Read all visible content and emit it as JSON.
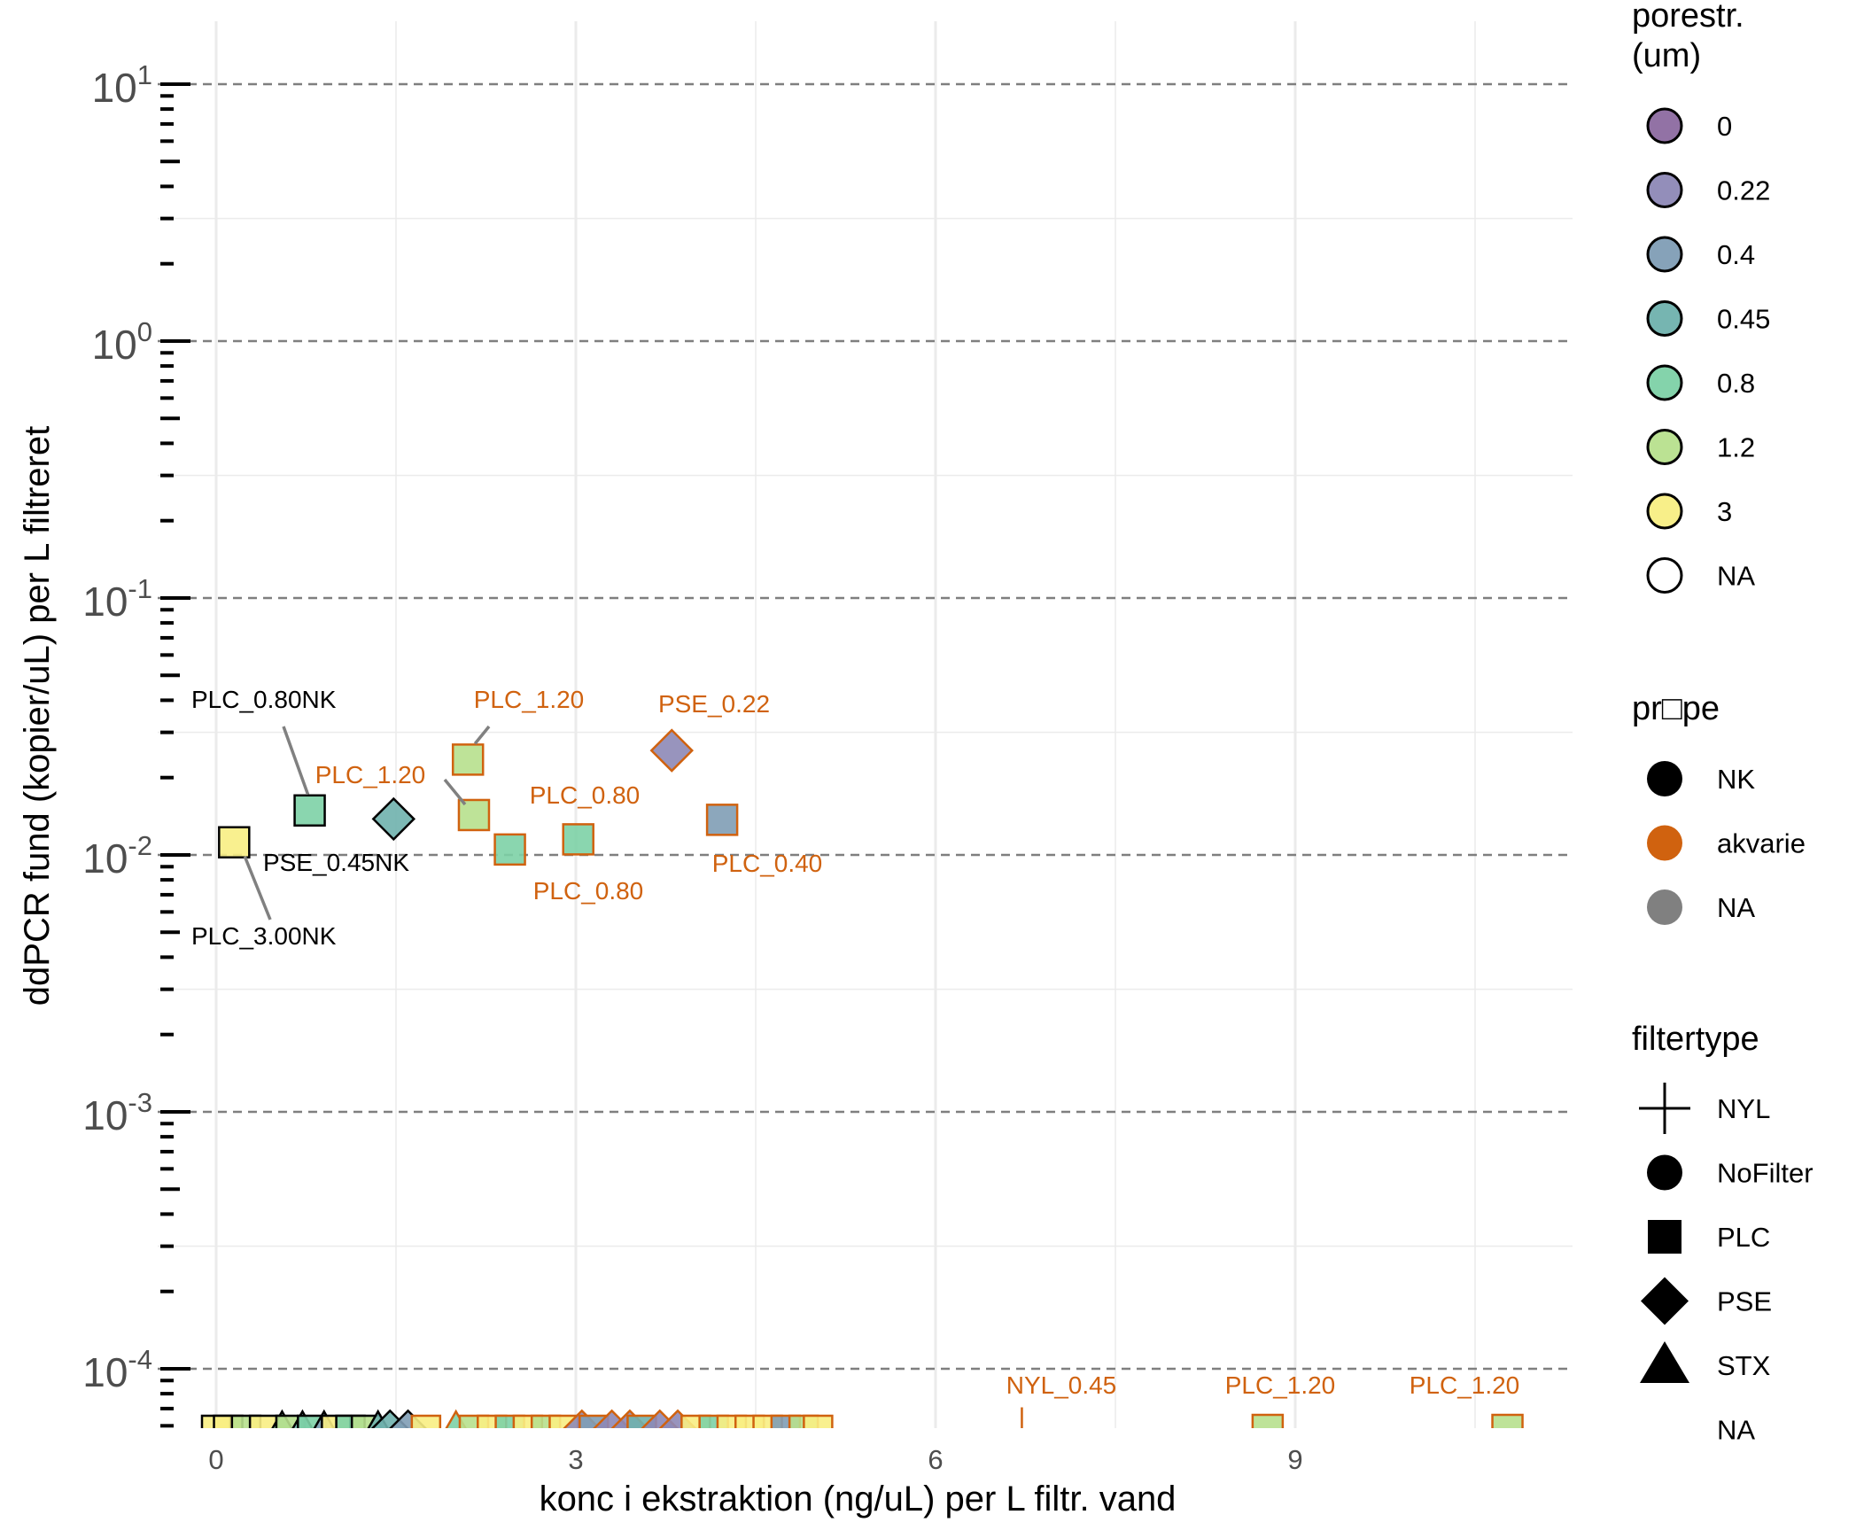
{
  "chart_data": {
    "type": "scatter",
    "title": "",
    "xlabel": "konc i ekstraktion (ng/uL) per L filtr. vand",
    "ylabel": "ddPCR fund (kopier/uL) per L filtreret",
    "x_scale": "linear",
    "y_scale": "log10",
    "xlim": [
      -0.55,
      11.3
    ],
    "ylim": [
      5e-05,
      20
    ],
    "x_ticks": [
      0,
      3,
      6,
      9
    ],
    "x_tick_labels": [
      "0",
      "3",
      "6",
      "9"
    ],
    "y_ticks": [
      {
        "base": "10",
        "exp": "-4",
        "value": 0.0001
      },
      {
        "base": "10",
        "exp": "-3",
        "value": 0.001
      },
      {
        "base": "10",
        "exp": "-2",
        "value": 0.01
      },
      {
        "base": "10",
        "exp": "-1",
        "value": 0.1
      },
      {
        "base": "10",
        "exp": "0",
        "value": 1
      },
      {
        "base": "10",
        "exp": "1",
        "value": 10
      }
    ],
    "grid": true,
    "dashed_reference_lines": [
      0.0001,
      0.001,
      0.01,
      0.1,
      1,
      10
    ],
    "legend_position": "right",
    "colors": {
      "porestr_0": "#8c6aa0",
      "porestr_0.22": "#8d88b6",
      "porestr_0.4": "#809db5",
      "porestr_0.45": "#6fb1ad",
      "porestr_0.8": "#7dd1a6",
      "porestr_1.2": "#b7e08d",
      "porestr_3": "#f8ee83",
      "probe_NK": "#000000",
      "probe_akvarie": "#d0620f",
      "probe_NA": "#808080",
      "grid": "#ebebeb",
      "dashed_line": "#7f7f7f"
    },
    "points": [
      {
        "x": 0.15,
        "y": 0.0112,
        "shape": "PLC",
        "porestr": "3",
        "probe": "NK",
        "label": "PLC_3.00NK"
      },
      {
        "x": 0.78,
        "y": 0.0149,
        "shape": "PLC",
        "porestr": "0.8",
        "probe": "NK",
        "label": "PLC_0.80NK"
      },
      {
        "x": 1.48,
        "y": 0.0138,
        "shape": "PSE",
        "porestr": "0.45",
        "probe": "NK",
        "label": "PSE_0.45NK"
      },
      {
        "x": 2.1,
        "y": 0.0235,
        "shape": "PLC",
        "porestr": "1.2",
        "probe": "akvarie",
        "label": "PLC_1.20"
      },
      {
        "x": 2.15,
        "y": 0.0143,
        "shape": "PLC",
        "porestr": "1.2",
        "probe": "akvarie",
        "label": "PLC_1.20"
      },
      {
        "x": 2.45,
        "y": 0.0105,
        "shape": "PLC",
        "porestr": "0.8",
        "probe": "akvarie",
        "label": "PLC_0.80"
      },
      {
        "x": 3.02,
        "y": 0.0115,
        "shape": "PLC",
        "porestr": "0.8",
        "probe": "akvarie",
        "label": "PLC_0.80"
      },
      {
        "x": 3.8,
        "y": 0.0255,
        "shape": "PSE",
        "porestr": "0.22",
        "probe": "akvarie",
        "label": "PSE_0.22"
      },
      {
        "x": 4.22,
        "y": 0.0137,
        "shape": "PLC",
        "porestr": "0.4",
        "probe": "akvarie",
        "label": "PLC_0.40"
      },
      {
        "x": 6.72,
        "y": 5.7e-05,
        "shape": "NYL",
        "porestr": "0.45",
        "probe": "akvarie",
        "label": "NYL_0.45"
      },
      {
        "x": 8.77,
        "y": 5.7e-05,
        "shape": "PLC",
        "porestr": "1.2",
        "probe": "akvarie",
        "label": "PLC_1.20"
      },
      {
        "x": 10.77,
        "y": 5.7e-05,
        "shape": "PLC",
        "porestr": "1.2",
        "probe": "akvarie",
        "label": "PLC_1.20"
      }
    ],
    "floor_points": [
      {
        "x": 0.0,
        "shape": "PLC",
        "porestr": "3",
        "probe": "NK"
      },
      {
        "x": 0.1,
        "shape": "PLC",
        "porestr": "3",
        "probe": "NK"
      },
      {
        "x": 0.25,
        "shape": "PLC",
        "porestr": "1.2",
        "probe": "NK"
      },
      {
        "x": 0.4,
        "shape": "PLC",
        "porestr": "3",
        "probe": "NK"
      },
      {
        "x": 0.55,
        "shape": "STX",
        "porestr": "0.8",
        "probe": "NK"
      },
      {
        "x": 0.62,
        "shape": "PLC",
        "porestr": "1.2",
        "probe": "NK"
      },
      {
        "x": 0.72,
        "shape": "STX",
        "porestr": "0.45",
        "probe": "NK"
      },
      {
        "x": 0.8,
        "shape": "PLC",
        "porestr": "0.8",
        "probe": "NK"
      },
      {
        "x": 0.9,
        "shape": "STX",
        "porestr": "0.4",
        "probe": "NK"
      },
      {
        "x": 1.0,
        "shape": "PLC",
        "porestr": "3",
        "probe": "NK"
      },
      {
        "x": 1.12,
        "shape": "PLC",
        "porestr": "0.8",
        "probe": "NK"
      },
      {
        "x": 1.25,
        "shape": "PLC",
        "porestr": "1.2",
        "probe": "NK"
      },
      {
        "x": 1.35,
        "shape": "STX",
        "porestr": "0.45",
        "probe": "NK"
      },
      {
        "x": 1.45,
        "shape": "PSE",
        "porestr": "0.45",
        "probe": "NK"
      },
      {
        "x": 1.6,
        "shape": "PSE",
        "porestr": "0.4",
        "probe": "NK"
      },
      {
        "x": 1.75,
        "shape": "PLC",
        "porestr": "3",
        "probe": "akvarie"
      },
      {
        "x": 2.0,
        "shape": "STX",
        "porestr": "0.8",
        "probe": "akvarie"
      },
      {
        "x": 2.15,
        "shape": "PLC",
        "porestr": "1.2",
        "probe": "akvarie"
      },
      {
        "x": 2.3,
        "shape": "PLC",
        "porestr": "3",
        "probe": "akvarie"
      },
      {
        "x": 2.45,
        "shape": "PLC",
        "porestr": "0.8",
        "probe": "akvarie"
      },
      {
        "x": 2.6,
        "shape": "PLC",
        "porestr": "3",
        "probe": "akvarie"
      },
      {
        "x": 2.75,
        "shape": "PLC",
        "porestr": "1.2",
        "probe": "akvarie"
      },
      {
        "x": 2.9,
        "shape": "PLC",
        "porestr": "3",
        "probe": "akvarie"
      },
      {
        "x": 3.05,
        "shape": "PSE",
        "porestr": "0.22",
        "probe": "akvarie"
      },
      {
        "x": 3.15,
        "shape": "PLC",
        "porestr": "0.4",
        "probe": "akvarie"
      },
      {
        "x": 3.3,
        "shape": "PSE",
        "porestr": "0.22",
        "probe": "akvarie"
      },
      {
        "x": 3.45,
        "shape": "PSE",
        "porestr": "0.22",
        "probe": "akvarie"
      },
      {
        "x": 3.55,
        "shape": "PLC",
        "porestr": "0.45",
        "probe": "akvarie"
      },
      {
        "x": 3.7,
        "shape": "PSE",
        "porestr": "0.22",
        "probe": "akvarie"
      },
      {
        "x": 3.85,
        "shape": "PSE",
        "porestr": "0.22",
        "probe": "akvarie"
      },
      {
        "x": 4.0,
        "shape": "PLC",
        "porestr": "3",
        "probe": "akvarie"
      },
      {
        "x": 4.15,
        "shape": "PLC",
        "porestr": "0.8",
        "probe": "akvarie"
      },
      {
        "x": 4.3,
        "shape": "PLC",
        "porestr": "3",
        "probe": "akvarie"
      },
      {
        "x": 4.45,
        "shape": "PLC",
        "porestr": "3",
        "probe": "akvarie"
      },
      {
        "x": 4.6,
        "shape": "PLC",
        "porestr": "3",
        "probe": "akvarie"
      },
      {
        "x": 4.75,
        "shape": "PLC",
        "porestr": "0.4",
        "probe": "akvarie"
      },
      {
        "x": 4.9,
        "shape": "PLC",
        "porestr": "1.2",
        "probe": "akvarie"
      },
      {
        "x": 5.02,
        "shape": "PLC",
        "porestr": "3",
        "probe": "akvarie"
      }
    ]
  },
  "legend": {
    "porestr": {
      "title": "porestr.\n(um)",
      "items": [
        {
          "label": "0",
          "color": "#8c6aa0"
        },
        {
          "label": "0.22",
          "color": "#8d88b6"
        },
        {
          "label": "0.4",
          "color": "#809db5"
        },
        {
          "label": "0.45",
          "color": "#6fb1ad"
        },
        {
          "label": "0.8",
          "color": "#7dd1a6"
        },
        {
          "label": "1.2",
          "color": "#b7e08d"
        },
        {
          "label": "3",
          "color": "#f8ee83"
        },
        {
          "label": "NA",
          "color": "#ffffff"
        }
      ]
    },
    "probe": {
      "title": "pr□pe",
      "items": [
        {
          "label": "NK",
          "color": "#000000"
        },
        {
          "label": "akvarie",
          "color": "#d0620f"
        },
        {
          "label": "NA",
          "color": "#808080"
        }
      ]
    },
    "filtertype": {
      "title": "filtertype",
      "items": [
        {
          "label": "NYL",
          "shape": "cross"
        },
        {
          "label": "NoFilter",
          "shape": "circle"
        },
        {
          "label": "PLC",
          "shape": "square"
        },
        {
          "label": "PSE",
          "shape": "diamond"
        },
        {
          "label": "STX",
          "shape": "triangle"
        },
        {
          "label": "NA",
          "shape": "none"
        }
      ]
    }
  }
}
